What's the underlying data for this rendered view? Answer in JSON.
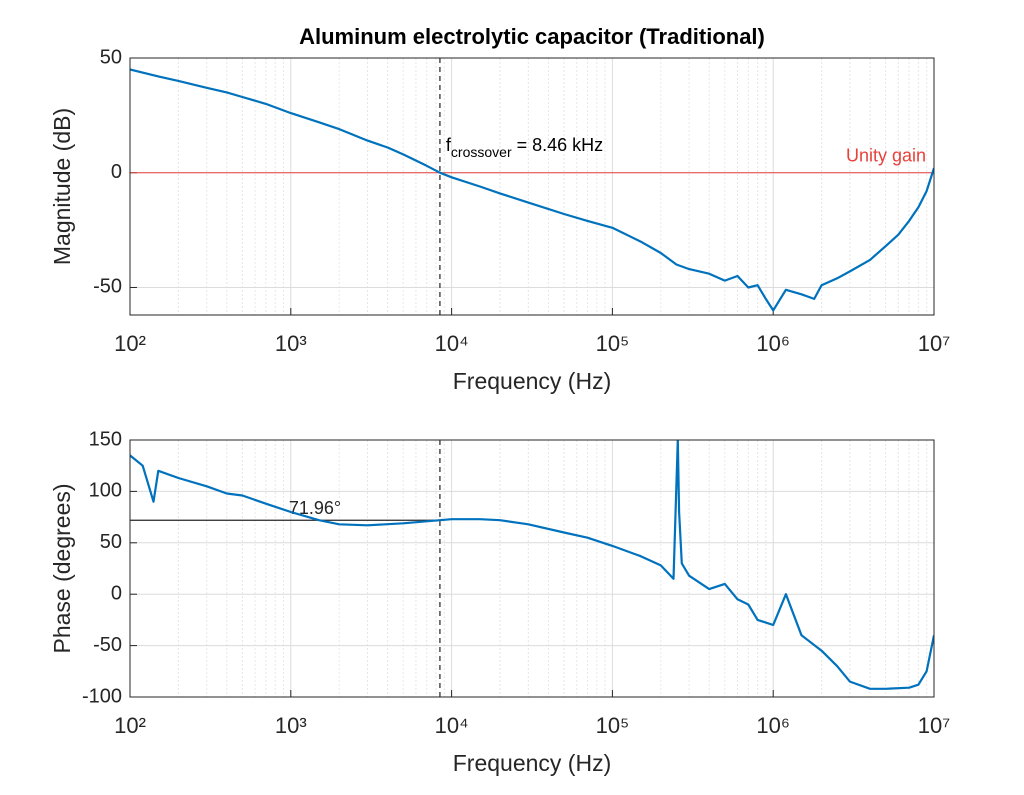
{
  "chart_data": [
    {
      "type": "line",
      "title": "Aluminum electrolytic capacitor (Traditional)",
      "xlabel": "Frequency (Hz)",
      "ylabel": "Magnitude (dB)",
      "log_x": true,
      "grid": true,
      "minor_grid": true,
      "xlim": [
        100,
        10000000
      ],
      "xticks": [
        {
          "value": 100,
          "label": "10²"
        },
        {
          "value": 1000,
          "label": "10³"
        },
        {
          "value": 10000,
          "label": "10⁴"
        },
        {
          "value": 100000,
          "label": "10⁵"
        },
        {
          "value": 1000000,
          "label": "10⁶"
        },
        {
          "value": 10000000,
          "label": "10⁷"
        }
      ],
      "ylim": [
        -62,
        50
      ],
      "yticks": [
        -50,
        0,
        50
      ],
      "vline": {
        "value": 8460,
        "label_parts": [
          "f",
          "crossover",
          " = 8.46 kHz"
        ]
      },
      "hline": {
        "value": 0,
        "label": "Unity gain",
        "color": "#e8413c"
      },
      "x": [
        100,
        150,
        200,
        300,
        400,
        500,
        700,
        1000,
        1500,
        2000,
        3000,
        4000,
        5000,
        7000,
        8460,
        10000,
        15000,
        20000,
        30000,
        50000,
        70000,
        100000,
        150000,
        200000,
        250000,
        300000,
        400000,
        500000,
        600000,
        700000,
        800000,
        900000,
        1000000,
        1200000,
        1500000,
        1800000,
        2000000,
        2500000,
        3000000,
        4000000,
        5000000,
        6000000,
        7000000,
        8000000,
        9000000,
        10000000
      ],
      "series": [
        {
          "name": "Magnitude",
          "color": "#0072bd",
          "values": [
            45,
            42,
            40,
            37,
            35,
            33,
            30,
            26,
            22,
            19,
            14,
            11,
            8,
            3,
            0,
            -2,
            -6,
            -9,
            -13,
            -18,
            -21,
            -24,
            -30,
            -35,
            -40,
            -42,
            -44,
            -47,
            -45,
            -50,
            -49,
            -55,
            -60,
            -51,
            -53,
            -55,
            -49,
            -46,
            -43,
            -38,
            -32,
            -27,
            -21,
            -15,
            -8,
            2
          ]
        }
      ]
    },
    {
      "type": "line",
      "xlabel": "Frequency (Hz)",
      "ylabel": "Phase (degrees)",
      "log_x": true,
      "grid": true,
      "minor_grid": true,
      "xlim": [
        100,
        10000000
      ],
      "xticks": [
        {
          "value": 100,
          "label": "10²"
        },
        {
          "value": 1000,
          "label": "10³"
        },
        {
          "value": 10000,
          "label": "10⁴"
        },
        {
          "value": 100000,
          "label": "10⁵"
        },
        {
          "value": 1000000,
          "label": "10⁶"
        },
        {
          "value": 10000000,
          "label": "10⁷"
        }
      ],
      "ylim": [
        -100,
        150
      ],
      "yticks": [
        -100,
        -50,
        0,
        50,
        100,
        150
      ],
      "vline": {
        "value": 8460
      },
      "hline": {
        "value": 71.96,
        "label": "71.96°",
        "color": "#262626"
      },
      "x": [
        100,
        120,
        140,
        150,
        200,
        300,
        400,
        500,
        700,
        1000,
        1500,
        2000,
        3000,
        5000,
        8460,
        10000,
        15000,
        20000,
        30000,
        50000,
        70000,
        100000,
        150000,
        200000,
        240000,
        255000,
        260000,
        270000,
        300000,
        400000,
        500000,
        600000,
        700000,
        800000,
        1000000,
        1200000,
        1500000,
        2000000,
        2500000,
        3000000,
        4000000,
        5000000,
        7000000,
        8000000,
        9000000,
        10000000
      ],
      "series": [
        {
          "name": "Phase",
          "color": "#0072bd",
          "values": [
            135,
            125,
            90,
            120,
            113,
            105,
            98,
            96,
            88,
            80,
            72,
            68,
            67,
            69,
            72,
            73,
            73,
            72,
            68,
            60,
            55,
            47,
            37,
            28,
            15,
            150,
            80,
            30,
            18,
            5,
            10,
            -5,
            -10,
            -25,
            -30,
            0,
            -40,
            -55,
            -70,
            -85,
            -92,
            -92,
            -91,
            -88,
            -75,
            -40
          ]
        }
      ]
    }
  ]
}
